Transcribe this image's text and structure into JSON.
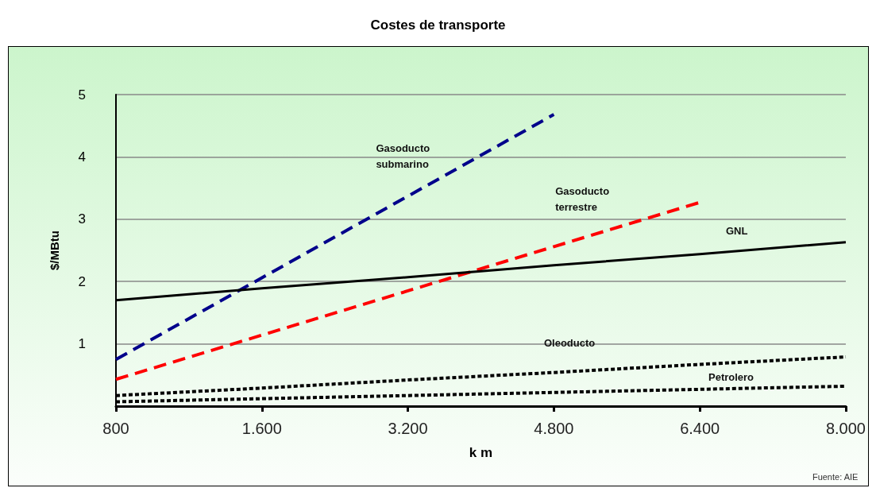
{
  "chart_data": {
    "type": "line",
    "title": "Costes de transporte",
    "xlabel": "k m",
    "ylabel": "$/MBtu",
    "categories": [
      "800",
      "1.600",
      "3.200",
      "4.800",
      "6.400",
      "8.000"
    ],
    "ylim": [
      0,
      5
    ],
    "yticks": [
      {
        "value": 0,
        "label": null
      },
      1,
      2,
      3,
      4,
      5
    ],
    "grid": "y",
    "marker": "none",
    "legend": false,
    "series": [
      {
        "name": "Gasoducto\nsubmarino",
        "color": "#00008b",
        "line_style": "dashed",
        "values": [
          0.75,
          2.06,
          3.37,
          4.68,
          null,
          null
        ]
      },
      {
        "name": "Gasoducto\nterrestre",
        "color": "#ff0000",
        "line_style": "dashed",
        "values": [
          0.43,
          1.14,
          1.85,
          2.56,
          3.27,
          null
        ]
      },
      {
        "name": "GNL",
        "color": "#000000",
        "line_style": "solid",
        "values": [
          1.7,
          1.89,
          2.07,
          2.26,
          2.44,
          2.63
        ]
      },
      {
        "name": "Oleoducto",
        "color": "#000000",
        "line_style": "dotted",
        "values": [
          0.17,
          0.29,
          0.42,
          0.54,
          0.67,
          0.79
        ]
      },
      {
        "name": "Petrolero",
        "color": "#000000",
        "line_style": "dotted",
        "values": [
          0.07,
          0.12,
          0.17,
          0.22,
          0.27,
          0.32
        ]
      }
    ],
    "annotations": [
      "Fuente: AIE"
    ]
  }
}
